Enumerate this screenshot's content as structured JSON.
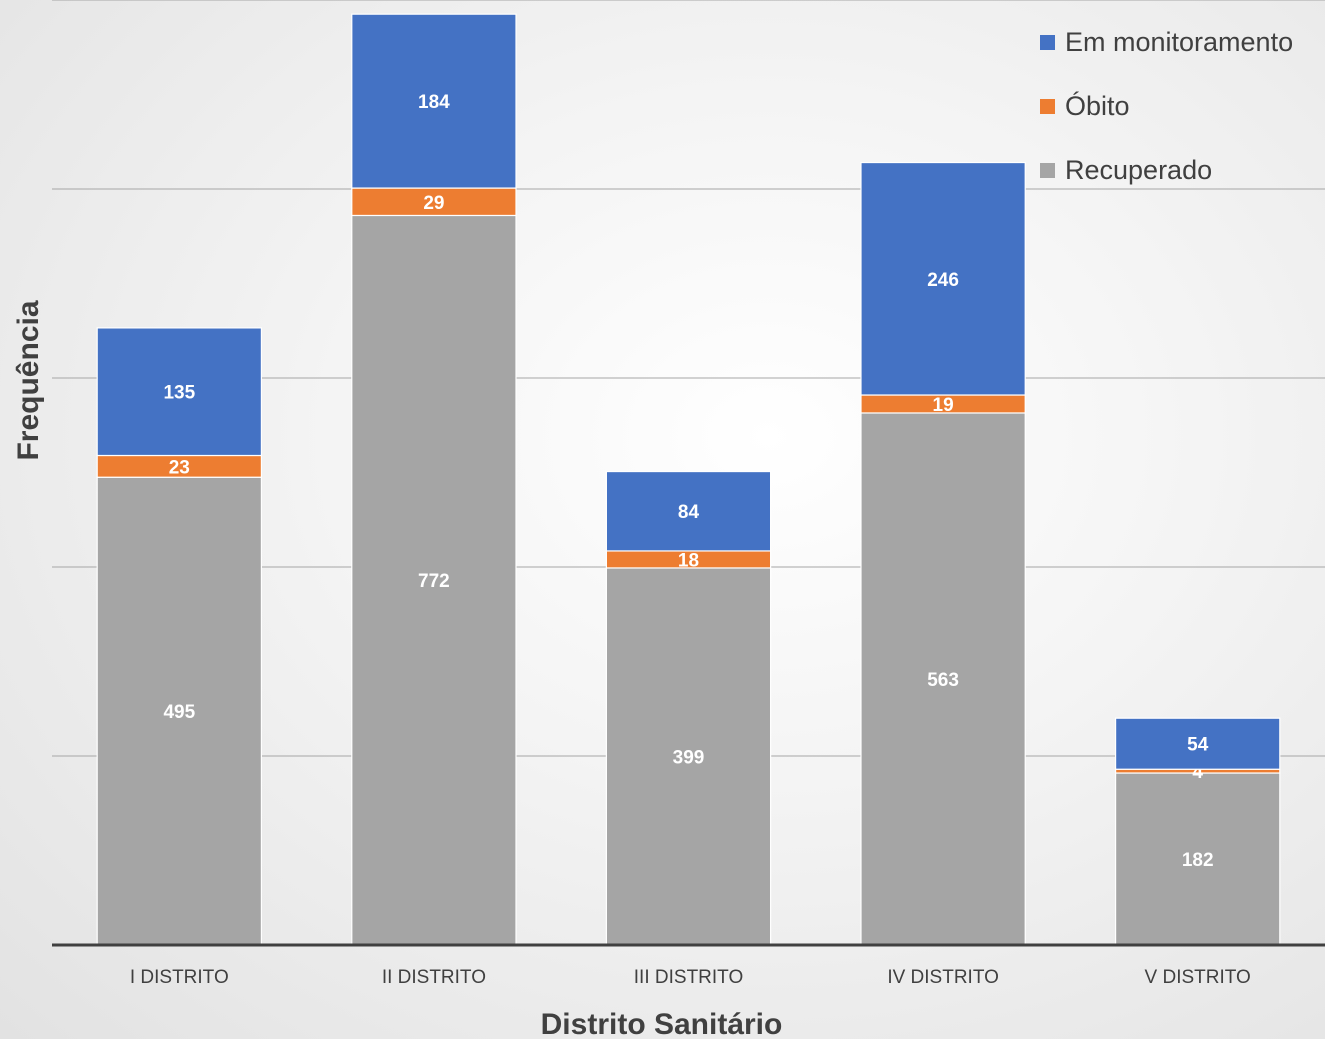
{
  "chart_data": {
    "type": "bar",
    "stacked": true,
    "categories": [
      "I DISTRITO",
      "II DISTRITO",
      "III DISTRITO",
      "IV DISTRITO",
      "V DISTRITO"
    ],
    "series": [
      {
        "name": "Recuperado",
        "values": [
          495,
          772,
          399,
          563,
          182
        ],
        "color": "#a5a5a5"
      },
      {
        "name": "Óbito",
        "values": [
          23,
          29,
          18,
          19,
          4
        ],
        "color": "#ed7d31"
      },
      {
        "name": "Em monitoramento",
        "values": [
          135,
          184,
          84,
          246,
          54
        ],
        "color": "#4472c4"
      }
    ],
    "legend_order": [
      "Em monitoramento",
      "Óbito",
      "Recuperado"
    ],
    "xlabel": "Distrito Sanitário",
    "ylabel": "Frequência",
    "ylim": [
      0,
      1000
    ],
    "gridlines": [
      200,
      400,
      600,
      800,
      1000
    ],
    "grid": true,
    "legend_position": "top-right",
    "data_labels": true
  }
}
